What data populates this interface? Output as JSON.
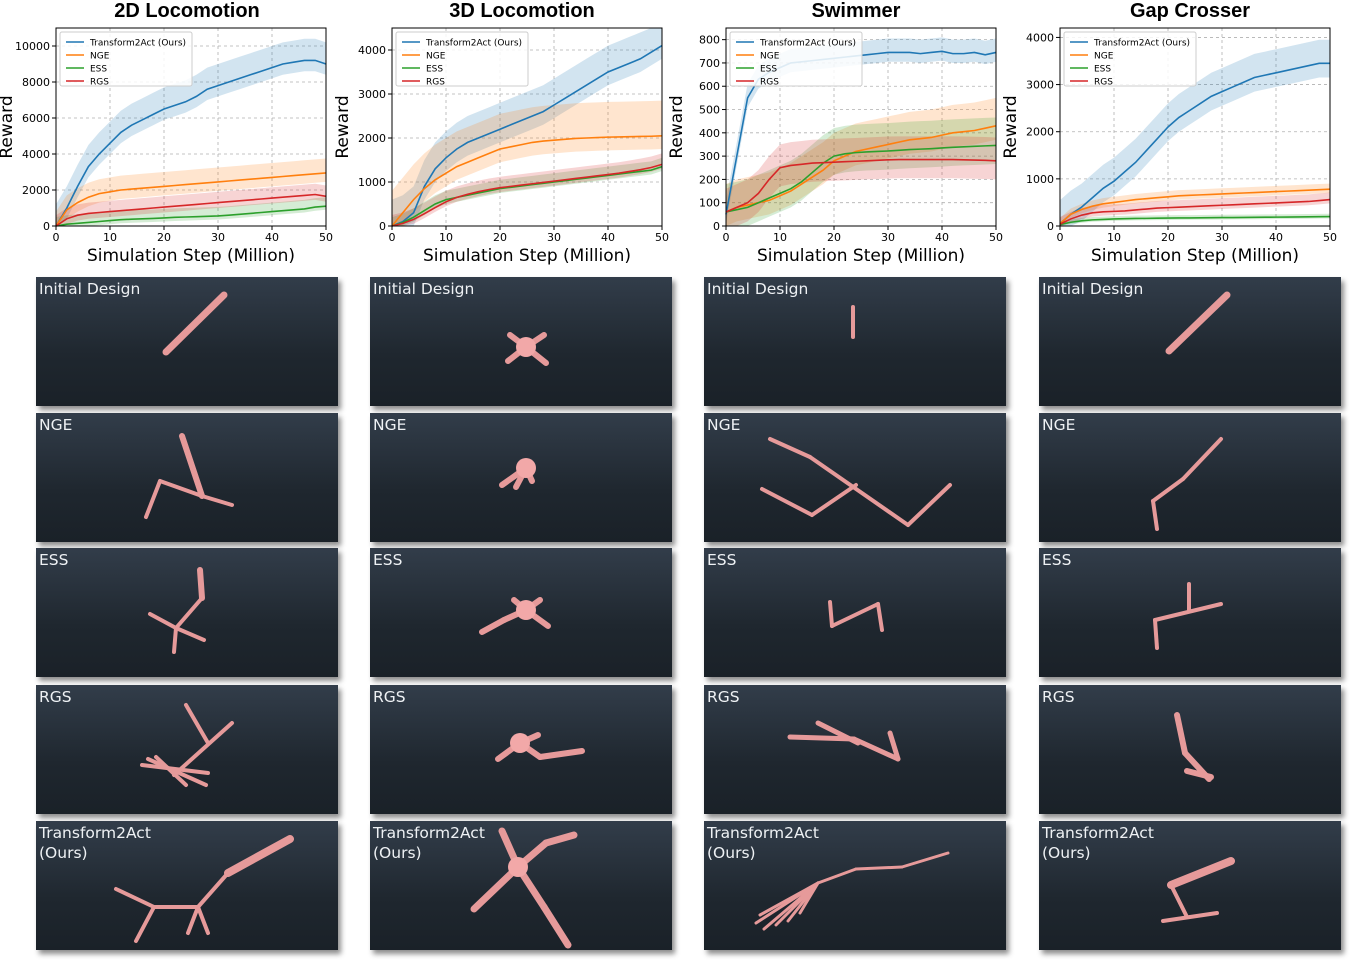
{
  "colors": {
    "Transform2Act (Ours)": "#1f77b4",
    "NGE": "#ff7f0e",
    "ESS": "#2ca02c",
    "RGS": "#d62728",
    "limb": "#f4a6a6",
    "panel_bg": "#27303a"
  },
  "panel_labels": {
    "initial": "Initial Design",
    "nge": "NGE",
    "ess": "ESS",
    "rgs": "RGS",
    "ours": "Transform2Act\n(Ours)"
  },
  "chart_data": [
    {
      "type": "line",
      "title": "2D Locomotion",
      "xlabel": "Simulation Step (Million)",
      "ylabel": "Reward",
      "xlim": [
        0,
        50
      ],
      "ylim": [
        0,
        11000
      ],
      "xticks": [
        0,
        10,
        20,
        30,
        40,
        50
      ],
      "yticks": [
        0,
        2000,
        4000,
        6000,
        8000,
        10000
      ],
      "grid": true,
      "legend": "top-left",
      "x": [
        0,
        2,
        4,
        6,
        8,
        10,
        12,
        14,
        16,
        18,
        20,
        22,
        24,
        26,
        28,
        30,
        32,
        34,
        36,
        38,
        40,
        42,
        44,
        46,
        48,
        50
      ],
      "series": [
        {
          "name": "Transform2Act (Ours)",
          "values": [
            0,
            1000,
            2200,
            3300,
            4000,
            4600,
            5200,
            5600,
            5900,
            6200,
            6500,
            6700,
            6900,
            7200,
            7600,
            7800,
            8000,
            8200,
            8400,
            8600,
            8800,
            9000,
            9100,
            9200,
            9200,
            9000
          ],
          "band": [
            600,
            1200
          ]
        },
        {
          "name": "NGE",
          "values": [
            0,
            900,
            1300,
            1600,
            1800,
            1900,
            2000,
            2050,
            2100,
            2150,
            2200,
            2250,
            2300,
            2350,
            2400,
            2450,
            2500,
            2550,
            2600,
            2650,
            2700,
            2750,
            2800,
            2850,
            2900,
            2950
          ],
          "band": [
            500,
            800
          ]
        },
        {
          "name": "ESS",
          "values": [
            0,
            100,
            150,
            200,
            250,
            300,
            350,
            380,
            400,
            420,
            450,
            480,
            500,
            520,
            540,
            560,
            600,
            650,
            700,
            750,
            800,
            850,
            900,
            950,
            1050,
            1100
          ],
          "band": [
            200,
            500
          ]
        },
        {
          "name": "RGS",
          "values": [
            0,
            400,
            600,
            700,
            750,
            800,
            850,
            900,
            950,
            1000,
            1050,
            1100,
            1150,
            1200,
            1250,
            1300,
            1350,
            1400,
            1450,
            1500,
            1550,
            1600,
            1650,
            1700,
            1750,
            1650
          ],
          "band": [
            300,
            600
          ]
        }
      ]
    },
    {
      "type": "line",
      "title": "3D Locomotion",
      "xlabel": "Simulation Step (Million)",
      "ylabel": "Reward",
      "xlim": [
        0,
        50
      ],
      "ylim": [
        0,
        4500
      ],
      "xticks": [
        0,
        10,
        20,
        30,
        40,
        50
      ],
      "yticks": [
        0,
        1000,
        2000,
        3000,
        4000
      ],
      "grid": true,
      "legend": "top-left",
      "x": [
        0,
        2,
        4,
        6,
        8,
        10,
        12,
        14,
        16,
        18,
        20,
        22,
        24,
        26,
        28,
        30,
        32,
        34,
        36,
        38,
        40,
        42,
        44,
        46,
        48,
        50
      ],
      "series": [
        {
          "name": "Transform2Act (Ours)",
          "values": [
            0,
            100,
            300,
            900,
            1300,
            1550,
            1750,
            1900,
            2000,
            2100,
            2200,
            2300,
            2400,
            2500,
            2600,
            2750,
            2900,
            3050,
            3200,
            3350,
            3500,
            3600,
            3700,
            3800,
            3950,
            4100
          ],
          "band": [
            300,
            600
          ]
        },
        {
          "name": "NGE",
          "values": [
            0,
            300,
            600,
            850,
            1050,
            1200,
            1350,
            1450,
            1550,
            1650,
            1750,
            1800,
            1850,
            1900,
            1930,
            1950,
            1970,
            1990,
            2000,
            2010,
            2020,
            2025,
            2030,
            2035,
            2040,
            2050
          ],
          "band": [
            300,
            800
          ]
        },
        {
          "name": "ESS",
          "values": [
            0,
            80,
            200,
            350,
            500,
            600,
            650,
            700,
            750,
            800,
            850,
            880,
            910,
            940,
            970,
            1000,
            1030,
            1060,
            1090,
            1120,
            1150,
            1180,
            1210,
            1240,
            1270,
            1350
          ],
          "band": [
            100,
            200
          ]
        },
        {
          "name": "RGS",
          "values": [
            0,
            60,
            150,
            280,
            420,
            550,
            650,
            720,
            780,
            830,
            870,
            900,
            930,
            960,
            990,
            1020,
            1050,
            1080,
            1110,
            1140,
            1170,
            1200,
            1240,
            1280,
            1330,
            1400
          ],
          "band": [
            100,
            250
          ]
        }
      ]
    },
    {
      "type": "line",
      "title": "Swimmer",
      "xlabel": "Simulation Step (Million)",
      "ylabel": "Reward",
      "xlim": [
        0,
        50
      ],
      "ylim": [
        0,
        850
      ],
      "xticks": [
        0,
        10,
        20,
        30,
        40,
        50
      ],
      "yticks": [
        0,
        100,
        200,
        300,
        400,
        500,
        600,
        700,
        800
      ],
      "grid": true,
      "legend": "top-left",
      "x": [
        0,
        2,
        4,
        6,
        8,
        10,
        12,
        14,
        16,
        18,
        20,
        22,
        24,
        26,
        28,
        30,
        32,
        34,
        36,
        38,
        40,
        42,
        44,
        46,
        48,
        50
      ],
      "series": [
        {
          "name": "Transform2Act (Ours)",
          "values": [
            50,
            300,
            550,
            630,
            660,
            680,
            700,
            705,
            710,
            715,
            720,
            725,
            730,
            735,
            740,
            745,
            745,
            745,
            740,
            745,
            750,
            740,
            740,
            745,
            735,
            745
          ],
          "band": [
            40,
            60
          ]
        },
        {
          "name": "NGE",
          "values": [
            60,
            80,
            90,
            100,
            110,
            130,
            150,
            180,
            210,
            240,
            280,
            300,
            320,
            330,
            340,
            350,
            360,
            370,
            375,
            380,
            390,
            400,
            405,
            410,
            420,
            430
          ],
          "band": [
            60,
            120
          ]
        },
        {
          "name": "ESS",
          "values": [
            60,
            70,
            80,
            100,
            120,
            140,
            160,
            190,
            230,
            270,
            300,
            310,
            315,
            318,
            320,
            322,
            325,
            328,
            330,
            332,
            335,
            338,
            340,
            342,
            344,
            346
          ],
          "band": [
            80,
            120
          ]
        },
        {
          "name": "RGS",
          "values": [
            60,
            80,
            100,
            140,
            200,
            250,
            260,
            265,
            270,
            272,
            274,
            276,
            278,
            280,
            282,
            284,
            285,
            285,
            285,
            285,
            285,
            285,
            284,
            283,
            282,
            280
          ],
          "band": [
            80,
            100
          ]
        }
      ]
    },
    {
      "type": "line",
      "title": "Gap Crosser",
      "xlabel": "Simulation Step (Million)",
      "ylabel": "Reward",
      "xlim": [
        0,
        50
      ],
      "ylim": [
        0,
        4200
      ],
      "xticks": [
        0,
        10,
        20,
        30,
        40,
        50
      ],
      "yticks": [
        0,
        1000,
        2000,
        3000,
        4000
      ],
      "grid": true,
      "legend": "top-left",
      "x": [
        0,
        2,
        4,
        6,
        8,
        10,
        12,
        14,
        16,
        18,
        20,
        22,
        24,
        26,
        28,
        30,
        32,
        34,
        36,
        38,
        40,
        42,
        44,
        46,
        48,
        50
      ],
      "series": [
        {
          "name": "Transform2Act (Ours)",
          "values": [
            50,
            250,
            400,
            600,
            800,
            950,
            1150,
            1350,
            1600,
            1850,
            2100,
            2300,
            2450,
            2600,
            2750,
            2850,
            2950,
            3050,
            3150,
            3200,
            3250,
            3300,
            3350,
            3400,
            3450,
            3450
          ],
          "band": [
            300,
            500
          ]
        },
        {
          "name": "NGE",
          "values": [
            50,
            250,
            350,
            420,
            470,
            500,
            530,
            560,
            580,
            600,
            620,
            640,
            650,
            660,
            670,
            680,
            690,
            700,
            710,
            720,
            730,
            740,
            750,
            760,
            770,
            780
          ],
          "band": [
            80,
            120
          ]
        },
        {
          "name": "ESS",
          "values": [
            30,
            80,
            110,
            130,
            140,
            150,
            155,
            160,
            162,
            165,
            168,
            170,
            172,
            174,
            176,
            178,
            180,
            182,
            184,
            186,
            188,
            190,
            192,
            195,
            198,
            200
          ],
          "band": [
            40,
            60
          ]
        },
        {
          "name": "RGS",
          "values": [
            40,
            150,
            230,
            280,
            300,
            310,
            320,
            340,
            360,
            380,
            390,
            400,
            410,
            420,
            430,
            440,
            450,
            460,
            470,
            480,
            490,
            500,
            510,
            520,
            540,
            560
          ],
          "band": [
            80,
            150
          ]
        }
      ]
    }
  ]
}
